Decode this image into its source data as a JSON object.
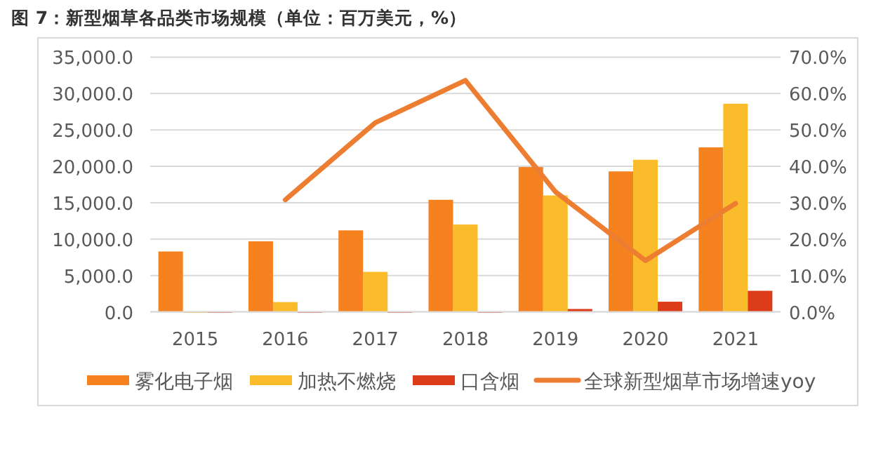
{
  "chart_data": {
    "type": "bar",
    "title": "图 7：新型烟草各品类市场规模（单位：百万美元，%）",
    "categories": [
      "2015",
      "2016",
      "2017",
      "2018",
      "2019",
      "2020",
      "2021"
    ],
    "series": [
      {
        "name": "雾化电子烟",
        "color": "#f5821f",
        "values": [
          8300,
          9700,
          11200,
          15400,
          19900,
          19300,
          22600
        ]
      },
      {
        "name": "加热不燃烧",
        "color": "#fbbc2b",
        "values": [
          0,
          1350,
          5500,
          12000,
          16000,
          20900,
          28600
        ]
      },
      {
        "name": "口含烟",
        "color": "#dd3c1b",
        "values": [
          0,
          0,
          0,
          0,
          400,
          1400,
          2900
        ]
      },
      {
        "name": "全球新型烟草市场增速yoy",
        "color": "#ed7d31",
        "type": "line",
        "axis": "y2",
        "values": [
          null,
          30.8,
          52.0,
          63.6,
          33.0,
          14.1,
          29.8
        ]
      }
    ],
    "ylim": [
      0,
      35000
    ],
    "yticks": [
      {
        "value": 0,
        "label": "0.0"
      },
      {
        "value": 5000,
        "label": "5,000.0"
      },
      {
        "value": 10000,
        "label": "10,000.0"
      },
      {
        "value": 15000,
        "label": "15,000.0"
      },
      {
        "value": 20000,
        "label": "20,000.0"
      },
      {
        "value": 25000,
        "label": "25,000.0"
      },
      {
        "value": 30000,
        "label": "30,000.0"
      },
      {
        "value": 35000,
        "label": "35,000.0"
      }
    ],
    "y2lim": [
      0,
      70
    ],
    "y2ticks": [
      {
        "value": 0,
        "label": "0.0%"
      },
      {
        "value": 10,
        "label": "10.0%"
      },
      {
        "value": 20,
        "label": "20.0%"
      },
      {
        "value": 30,
        "label": "30.0%"
      },
      {
        "value": 40,
        "label": "40.0%"
      },
      {
        "value": 50,
        "label": "50.0%"
      },
      {
        "value": 60,
        "label": "60.0%"
      },
      {
        "value": 70,
        "label": "70.0%"
      }
    ],
    "grid": "y",
    "legend": "bottom"
  }
}
